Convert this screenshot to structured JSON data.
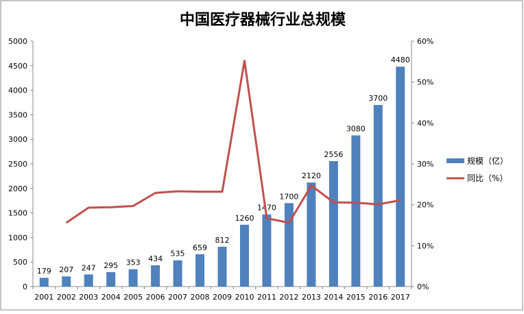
{
  "chart_data": {
    "type": "bar+line",
    "title": "中国医疗器械行业总规模",
    "categories": [
      "2001",
      "2002",
      "2003",
      "2004",
      "2005",
      "2006",
      "2007",
      "2008",
      "2009",
      "2010",
      "2011",
      "2012",
      "2013",
      "2014",
      "2015",
      "2016",
      "2017"
    ],
    "series": [
      {
        "name": "规模（亿）",
        "type": "bar",
        "axis": "left",
        "color": "#4F81BD",
        "values": [
          179,
          207,
          247,
          295,
          353,
          434,
          535,
          659,
          812,
          1260,
          1470,
          1700,
          2120,
          2556,
          3080,
          3700,
          4480
        ],
        "labels": [
          "179",
          "207",
          "247",
          "295",
          "353",
          "434",
          "535",
          "659",
          "812",
          "1260",
          "1470",
          "1700",
          "2120",
          "2556",
          "3080",
          "3700",
          "4480"
        ]
      },
      {
        "name": "同比（%）",
        "type": "line",
        "axis": "right",
        "color": "#C0504D",
        "values": [
          null,
          15.6,
          19.3,
          19.4,
          19.7,
          22.9,
          23.3,
          23.2,
          23.2,
          55.2,
          16.7,
          15.6,
          24.7,
          20.6,
          20.5,
          20.1,
          21.1
        ]
      }
    ],
    "y_left": {
      "ylim": [
        0,
        5000
      ],
      "ticks": [
        "0",
        "500",
        "1000",
        "1500",
        "2000",
        "2500",
        "3000",
        "3500",
        "4000",
        "4500",
        "5000"
      ]
    },
    "y_right": {
      "ylim": [
        0,
        60
      ],
      "ticks": [
        "0%",
        "10%",
        "20%",
        "30%",
        "40%",
        "50%",
        "60%"
      ]
    },
    "grid": false,
    "legend": "right"
  }
}
